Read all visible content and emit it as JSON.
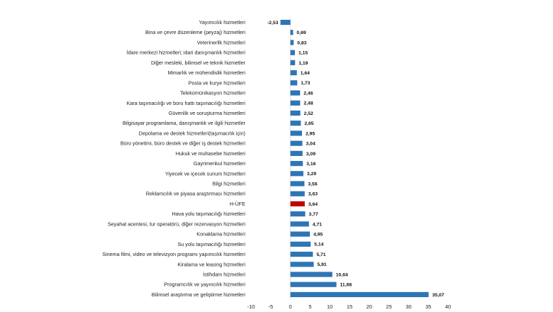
{
  "chart_data": {
    "type": "bar",
    "orientation": "horizontal",
    "categories": [
      "Yayımcılık hizmetleri",
      "Bina ve çevre düzenleme (peyzaj) hizmetleri",
      "Veterinerlik hizmetleri",
      "İdare merkezi hizmetleri; idari danışmanlık hizmetleri",
      "Diğer mesleki, bilimsel ve teknik hizmetler",
      "Mimarlık ve mühendislik hizmetleri",
      "Posta ve kurye hizmetleri",
      "Telekomünikasyon hizmetleri",
      "Kara taşımacılığı ve boru hattı taşımacılığı hizmetleri",
      "Güvenlik ve soruşturma hizmetleri",
      "Bilgisayar programlama, danışmanlık ve ilgili hizmetler",
      "Depolama ve destek hizmetleri(taşımacılık için)",
      "Büro yönetimi, büro destek ve diğer iş destek hizmetleri",
      "Hukuk ve muhasebe hizmetleri",
      "Gayrimenkul hizmetleri",
      "Yiyecek ve içecek sunum hizmetleri",
      "Bilgi hizmetleri",
      "Reklamcılık ve piyasa araştırması hizmetleri",
      "H-ÜFE",
      "Hava yolu taşımacılığı hizmetleri",
      "Seyahat acentesi, tur operatörü, diğer rezervasyon hizmetleri",
      "Konaklama hizmetleri",
      "Su yolu taşımacılığı hizmetleri",
      "Sinema filmi, video ve televizyon programı yapımcılık hizmetleri",
      "Kiralama ve leasing hizmetleri",
      "İstihdam hizmetleri",
      "Programcılık ve yayıncılık hizmetleri",
      "Bilimsel araştırma ve geliştirme hizmetleri"
    ],
    "values": [
      -2.53,
      0.69,
      0.83,
      1.15,
      1.19,
      1.64,
      1.73,
      2.46,
      2.48,
      2.52,
      2.65,
      2.95,
      3.04,
      3.09,
      3.16,
      3.29,
      3.56,
      3.63,
      3.64,
      3.77,
      4.71,
      4.95,
      5.14,
      5.71,
      5.91,
      10.64,
      11.68,
      35.07
    ],
    "value_labels": [
      "-2,53",
      "0,69",
      "0,83",
      "1,15",
      "1,19",
      "1,64",
      "1,73",
      "2,46",
      "2,48",
      "2,52",
      "2,65",
      "2,95",
      "3,04",
      "3,09",
      "3,16",
      "3,29",
      "3,56",
      "3,63",
      "3,64",
      "3,77",
      "4,71",
      "4,95",
      "5,14",
      "5,71",
      "5,91",
      "10,64",
      "11,68",
      "35,07"
    ],
    "highlight_category": "H-ÜFE",
    "xlim": [
      -10,
      40
    ],
    "xticks": [
      -10,
      -5,
      0,
      5,
      10,
      15,
      20,
      25,
      30,
      35,
      40
    ],
    "grid": false,
    "legend": "none",
    "bar_color": "#2e75b6",
    "highlight_color": "#c00000"
  }
}
